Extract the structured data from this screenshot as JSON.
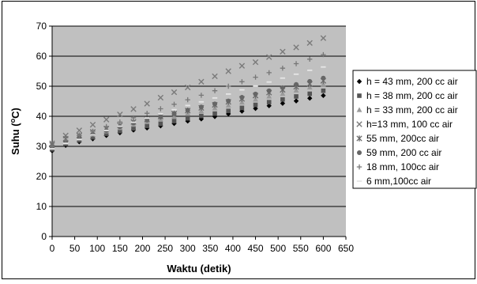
{
  "chart_data": {
    "type": "scatter",
    "title": "",
    "xlabel": "Waktu (detik)",
    "ylabel_parts": [
      "Suhu (",
      "o",
      "C)"
    ],
    "xlim": [
      0,
      650
    ],
    "ylim": [
      0,
      70
    ],
    "x_ticks": [
      0,
      50,
      100,
      150,
      200,
      250,
      300,
      350,
      400,
      450,
      500,
      550,
      600,
      650
    ],
    "y_ticks": [
      0,
      10,
      20,
      30,
      40,
      50,
      60,
      70
    ],
    "grid": "horizontal",
    "legend_position": "right",
    "plot_background": "#c0c0c0",
    "series": [
      {
        "name": "h = 43 mm, 200 cc air",
        "marker": "diamond",
        "color": "#000000",
        "x": [
          0,
          30,
          60,
          90,
          120,
          150,
          180,
          210,
          240,
          270,
          300,
          330,
          360,
          390,
          420,
          450,
          480,
          510,
          540,
          570,
          600
        ],
        "y": [
          28.5,
          30.3,
          31.5,
          32.5,
          33.6,
          34.5,
          35.4,
          36.1,
          36.8,
          37.6,
          38.4,
          39.1,
          39.9,
          40.8,
          41.7,
          42.6,
          43.5,
          44.3,
          45.1,
          46.0,
          46.9
        ]
      },
      {
        "name": "h = 38 mm, 200 cc air",
        "marker": "square",
        "color": "#555555",
        "x": [
          0,
          30,
          60,
          90,
          120,
          150,
          180,
          210,
          240,
          270,
          300,
          330,
          360,
          390,
          420,
          450,
          480,
          510,
          540,
          570,
          600
        ],
        "y": [
          29.0,
          30.8,
          32.0,
          33.0,
          34.2,
          35.1,
          36.0,
          36.8,
          37.5,
          38.4,
          39.3,
          40.1,
          40.9,
          41.8,
          42.8,
          43.8,
          44.7,
          45.6,
          46.6,
          47.5,
          48.5
        ]
      },
      {
        "name": "h = 33 mm, 200 cc air",
        "marker": "triangle",
        "color": "#9a9a9a",
        "x": [
          0,
          30,
          60,
          90,
          120,
          150,
          180,
          210,
          240,
          270,
          300,
          330,
          360,
          390,
          420,
          450,
          480,
          510,
          540,
          570,
          600
        ],
        "y": [
          29.5,
          31.2,
          32.6,
          33.8,
          35.0,
          36.1,
          37.2,
          38.1,
          39.0,
          39.9,
          40.9,
          41.7,
          42.7,
          43.6,
          44.6,
          45.6,
          46.6,
          47.5,
          48.6,
          49.6,
          50.6
        ]
      },
      {
        "name": "h=13 mm, 100 cc air",
        "marker": "x",
        "color": "#7a7a7a",
        "x": [
          0,
          30,
          60,
          90,
          120,
          150,
          180,
          210,
          240,
          270,
          300,
          330,
          360,
          390,
          420,
          450,
          480,
          510,
          540,
          570,
          600
        ],
        "y": [
          31.0,
          33.6,
          35.3,
          37.2,
          38.9,
          40.6,
          42.4,
          44.2,
          46.2,
          48.0,
          49.6,
          51.5,
          53.3,
          55.0,
          56.8,
          58.0,
          59.7,
          61.5,
          62.9,
          64.4,
          66.0
        ]
      },
      {
        "name": "55 mm, 200cc air",
        "marker": "star",
        "color": "#6a6a6a",
        "x": [
          0,
          30,
          60,
          90,
          120,
          150,
          180,
          210,
          240,
          270,
          300,
          330,
          360,
          390,
          420,
          450,
          480,
          510,
          540,
          570,
          600
        ],
        "y": [
          30.5,
          32.5,
          33.6,
          34.8,
          35.9,
          37.0,
          38.1,
          38.9,
          39.9,
          40.9,
          41.9,
          42.8,
          43.8,
          44.8,
          45.8,
          46.9,
          47.9,
          48.8,
          49.8,
          50.8,
          51.8
        ]
      },
      {
        "name": "59 mm, 200 cc air",
        "marker": "circle",
        "color": "#666666",
        "x": [
          0,
          30,
          60,
          90,
          120,
          150,
          180,
          210,
          240,
          270,
          300,
          330,
          360,
          390,
          420,
          450,
          480,
          510,
          540,
          570,
          600
        ],
        "y": [
          29.8,
          31.5,
          32.9,
          34.0,
          35.3,
          36.5,
          37.8,
          38.8,
          39.8,
          40.9,
          42.0,
          43.1,
          44.1,
          45.1,
          46.3,
          47.4,
          48.5,
          49.5,
          50.6,
          51.6,
          52.7
        ]
      },
      {
        "name": "18 mm, 100cc air",
        "marker": "plus",
        "color": "#777777",
        "x": [
          0,
          30,
          60,
          90,
          120,
          150,
          180,
          210,
          240,
          270,
          300,
          330,
          360,
          390,
          420,
          450,
          480,
          510,
          540,
          570,
          600
        ],
        "y": [
          30.0,
          32.0,
          33.6,
          35.0,
          36.6,
          38.1,
          39.5,
          41.0,
          42.5,
          44.0,
          45.5,
          47.0,
          48.5,
          50.0,
          51.5,
          53.0,
          54.5,
          56.0,
          57.5,
          59.0,
          60.5
        ]
      },
      {
        "name": "6 mm,100cc air",
        "marker": "dash",
        "color": "#e6e6e6",
        "x": [
          0,
          30,
          60,
          90,
          120,
          150,
          180,
          210,
          240,
          270,
          300,
          330,
          360,
          390,
          420,
          450,
          480,
          510,
          540,
          570,
          600
        ],
        "y": [
          29.2,
          31.0,
          32.3,
          33.8,
          35.3,
          36.7,
          38.0,
          39.4,
          40.8,
          42.2,
          43.6,
          44.8,
          46.1,
          47.4,
          48.8,
          50.1,
          51.4,
          52.7,
          54.0,
          55.3,
          56.4
        ]
      }
    ]
  }
}
